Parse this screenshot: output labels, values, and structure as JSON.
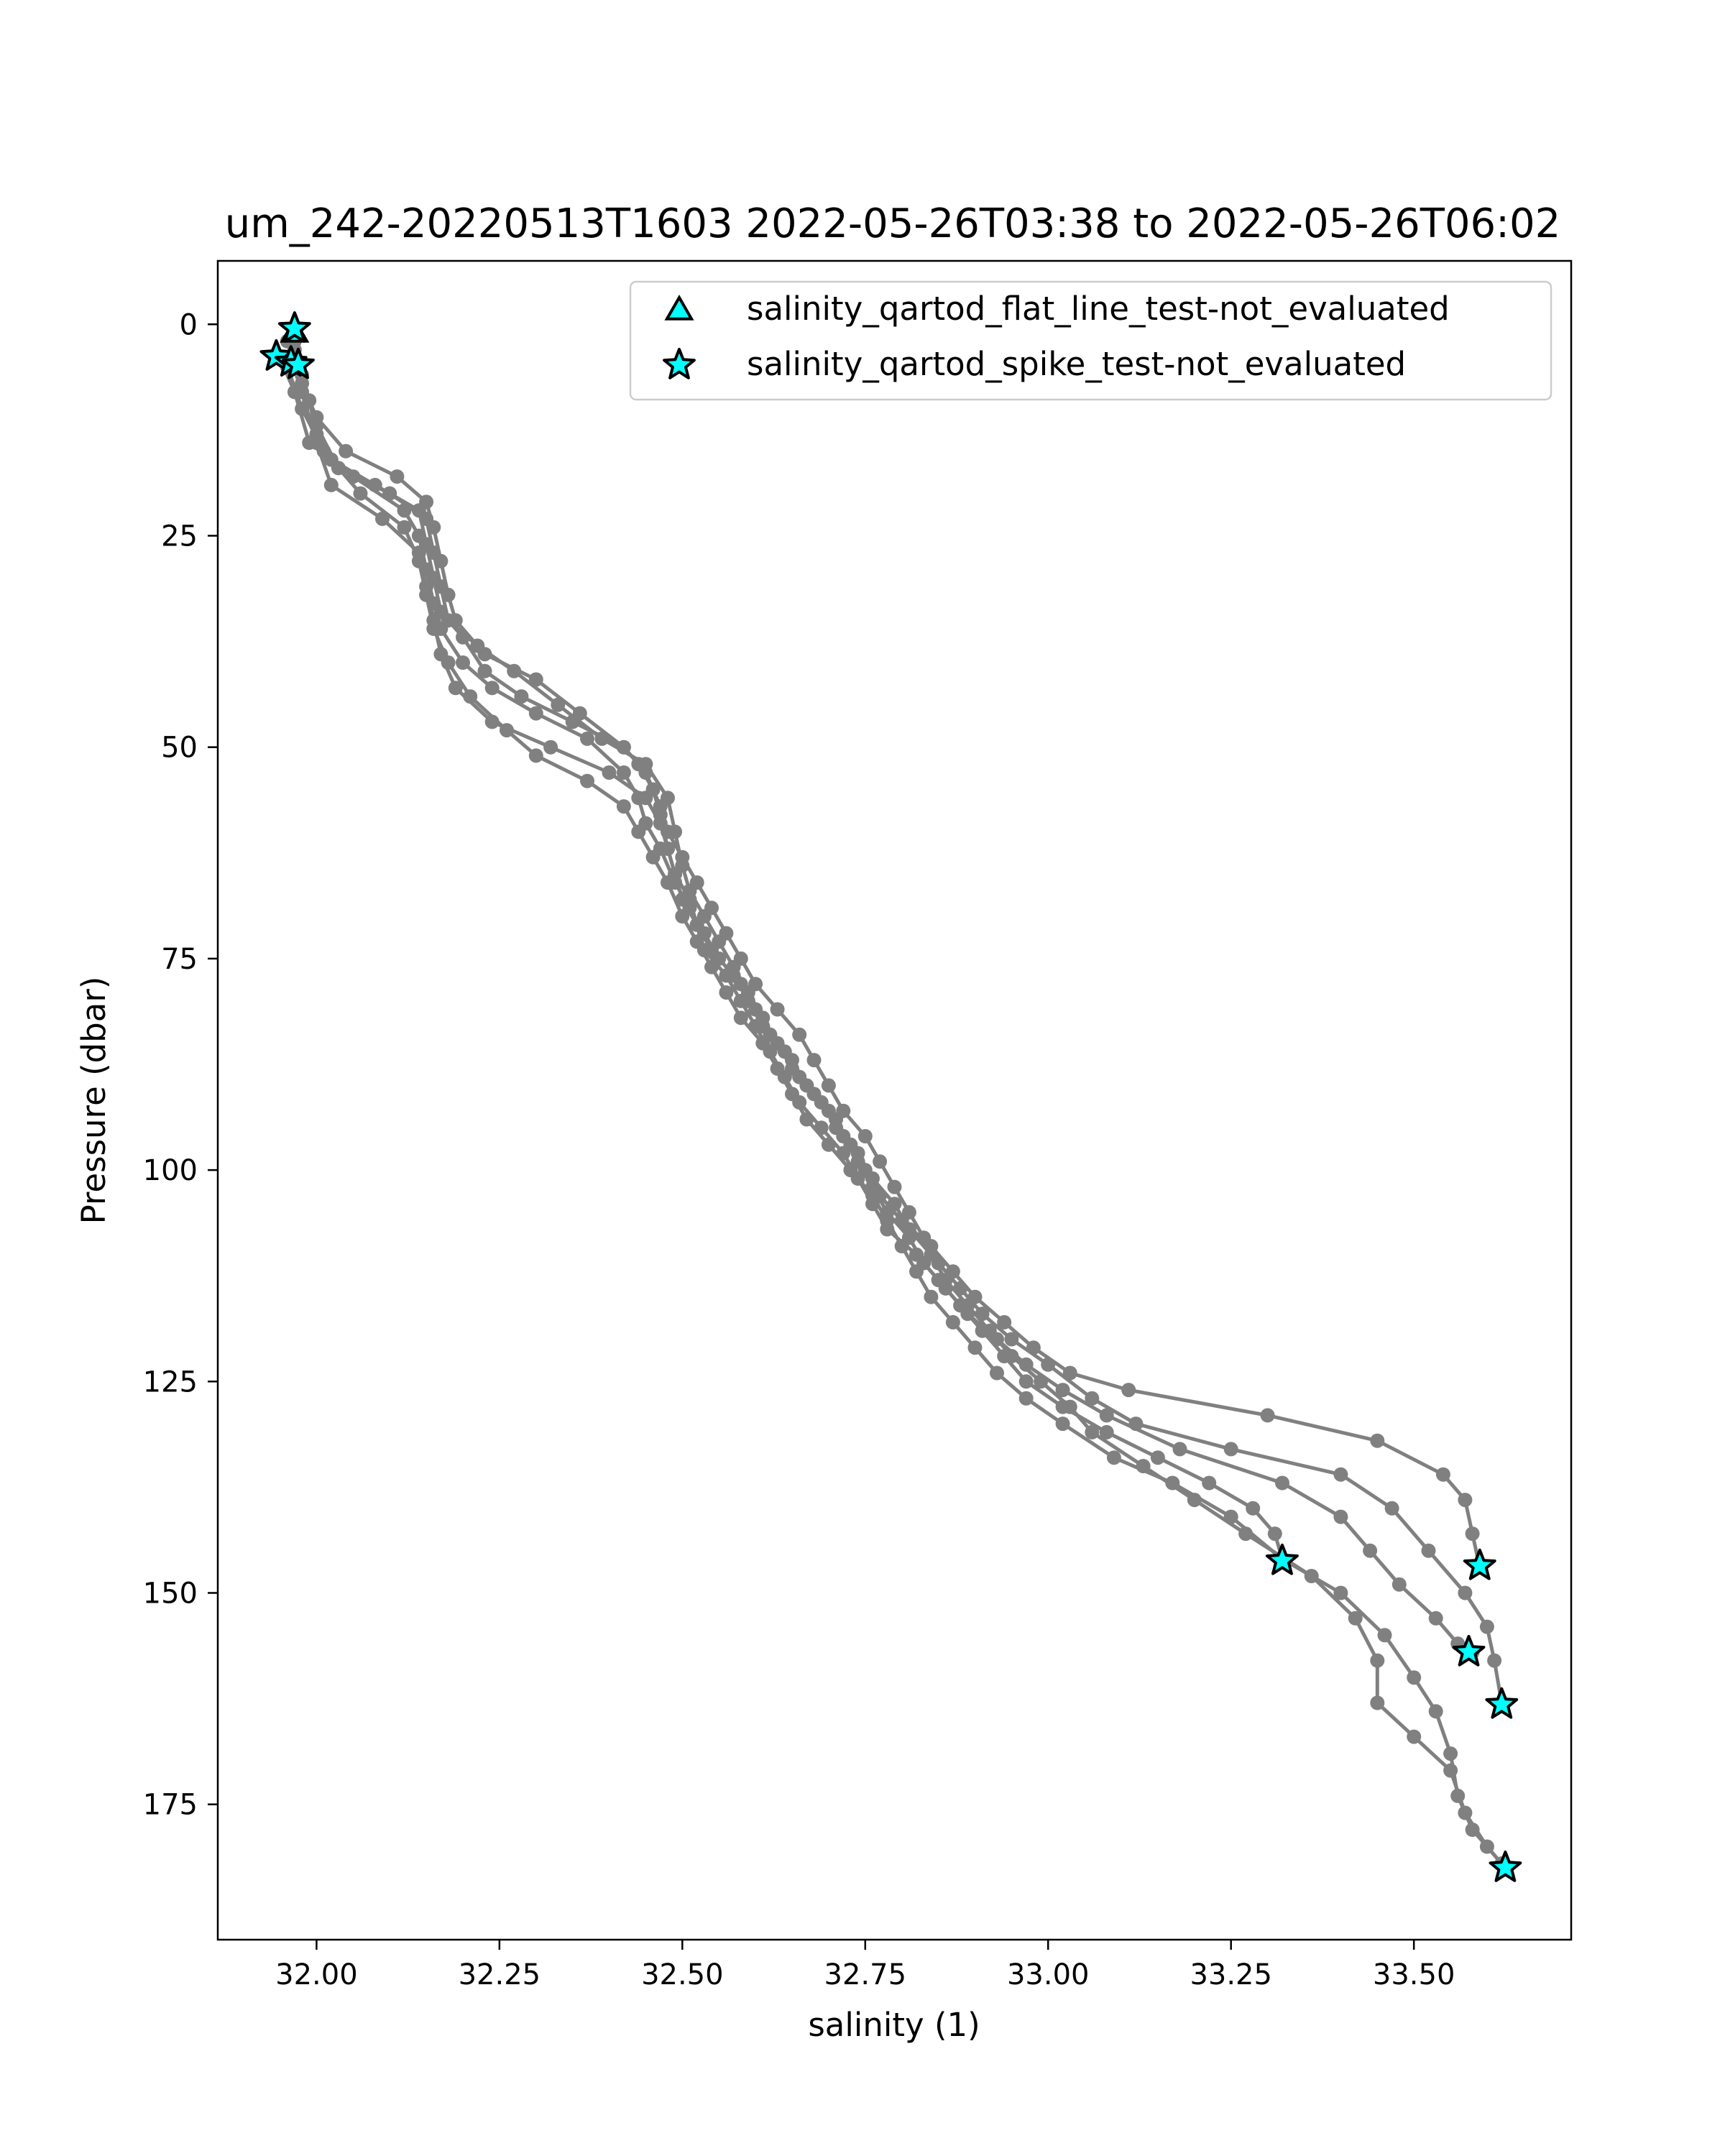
{
  "chart_data": {
    "type": "scatter",
    "title": "um_242-20220513T1603 2022-05-26T03:38 to 2022-05-26T06:02",
    "xlabel": "salinity (1)",
    "ylabel": "Pressure (dbar)",
    "xlim": [
      31.865,
      33.715
    ],
    "ylim": [
      191,
      -7.5
    ],
    "y_inverted": true,
    "grid": false,
    "legend_position": "top-right",
    "x_ticks": [
      {
        "value": 32.0,
        "label": "32.00"
      },
      {
        "value": 32.25,
        "label": "32.25"
      },
      {
        "value": 32.5,
        "label": "32.50"
      },
      {
        "value": 32.75,
        "label": "32.75"
      },
      {
        "value": 33.0,
        "label": "33.00"
      },
      {
        "value": 33.25,
        "label": "33.25"
      },
      {
        "value": 33.5,
        "label": "33.50"
      }
    ],
    "y_ticks": [
      {
        "value": 0,
        "label": "0"
      },
      {
        "value": 25,
        "label": "25"
      },
      {
        "value": 50,
        "label": "50"
      },
      {
        "value": 75,
        "label": "75"
      },
      {
        "value": 100,
        "label": "100"
      },
      {
        "value": 125,
        "label": "125"
      },
      {
        "value": 150,
        "label": "150"
      },
      {
        "value": 175,
        "label": "175"
      }
    ],
    "profile_color": "#808080",
    "marker_color": "#00ffff",
    "profiles": [
      [
        [
          31.96,
          2
        ],
        [
          31.97,
          5
        ],
        [
          31.99,
          9
        ],
        [
          32.0,
          13
        ],
        [
          32.02,
          16
        ],
        [
          32.08,
          19
        ],
        [
          32.14,
          22
        ],
        [
          32.15,
          26
        ],
        [
          32.16,
          30
        ],
        [
          32.17,
          34
        ],
        [
          32.2,
          37
        ],
        [
          32.23,
          41
        ],
        [
          32.28,
          44
        ],
        [
          32.35,
          47
        ],
        [
          32.42,
          50
        ],
        [
          32.44,
          52
        ],
        [
          32.46,
          55
        ],
        [
          32.47,
          58
        ],
        [
          32.48,
          62
        ],
        [
          32.49,
          65
        ],
        [
          32.5,
          68
        ],
        [
          32.52,
          71
        ],
        [
          32.53,
          74
        ],
        [
          32.56,
          77
        ],
        [
          32.58,
          80
        ],
        [
          32.6,
          83
        ],
        [
          32.62,
          86
        ],
        [
          32.64,
          89
        ],
        [
          32.66,
          92
        ],
        [
          32.69,
          95
        ],
        [
          32.72,
          98
        ],
        [
          32.74,
          101
        ],
        [
          32.76,
          104
        ],
        [
          32.78,
          107
        ],
        [
          32.82,
          110
        ],
        [
          32.85,
          113
        ],
        [
          32.88,
          116
        ],
        [
          32.91,
          119
        ],
        [
          32.94,
          122
        ],
        [
          32.97,
          125
        ],
        [
          33.02,
          128
        ],
        [
          33.08,
          131
        ],
        [
          33.15,
          134
        ],
        [
          33.22,
          137
        ],
        [
          33.28,
          140
        ],
        [
          33.31,
          143
        ],
        [
          33.32,
          146
        ]
      ],
      [
        [
          31.97,
          1
        ],
        [
          31.98,
          6
        ],
        [
          32.0,
          12
        ],
        [
          32.03,
          17
        ],
        [
          32.1,
          20
        ],
        [
          32.15,
          23
        ],
        [
          32.16,
          27
        ],
        [
          32.17,
          31
        ],
        [
          32.18,
          35
        ],
        [
          32.22,
          38
        ],
        [
          32.27,
          41
        ],
        [
          32.33,
          45
        ],
        [
          32.39,
          49
        ],
        [
          32.45,
          52
        ],
        [
          32.48,
          56
        ],
        [
          32.49,
          60
        ],
        [
          32.5,
          64
        ],
        [
          32.51,
          67
        ],
        [
          32.53,
          70
        ],
        [
          32.55,
          73
        ],
        [
          32.57,
          76
        ],
        [
          32.59,
          79
        ],
        [
          32.61,
          82
        ],
        [
          32.63,
          85
        ],
        [
          32.65,
          88
        ],
        [
          32.68,
          91
        ],
        [
          32.71,
          94
        ],
        [
          32.73,
          97
        ],
        [
          32.75,
          100
        ],
        [
          32.77,
          103
        ],
        [
          32.8,
          106
        ],
        [
          32.84,
          109
        ],
        [
          32.87,
          112
        ],
        [
          32.9,
          115
        ],
        [
          32.94,
          118
        ],
        [
          32.98,
          121
        ],
        [
          33.03,
          124
        ],
        [
          33.11,
          126
        ],
        [
          33.3,
          129
        ],
        [
          33.45,
          132
        ],
        [
          33.54,
          136
        ],
        [
          33.57,
          139
        ],
        [
          33.58,
          143
        ],
        [
          33.59,
          147
        ]
      ],
      [
        [
          31.95,
          4
        ],
        [
          31.97,
          8
        ],
        [
          31.99,
          14
        ],
        [
          32.05,
          18
        ],
        [
          32.12,
          22
        ],
        [
          32.14,
          25
        ],
        [
          32.15,
          29
        ],
        [
          32.16,
          33
        ],
        [
          32.17,
          36
        ],
        [
          32.2,
          40
        ],
        [
          32.24,
          43
        ],
        [
          32.3,
          46
        ],
        [
          32.37,
          49
        ],
        [
          32.42,
          53
        ],
        [
          32.44,
          56
        ],
        [
          32.45,
          59
        ],
        [
          32.47,
          62
        ],
        [
          32.49,
          66
        ],
        [
          32.51,
          69
        ],
        [
          32.53,
          72
        ],
        [
          32.55,
          75
        ],
        [
          32.58,
          78
        ],
        [
          32.6,
          81
        ],
        [
          32.62,
          84
        ],
        [
          32.65,
          87
        ],
        [
          32.67,
          90
        ],
        [
          32.7,
          93
        ],
        [
          32.72,
          96
        ],
        [
          32.74,
          99
        ],
        [
          32.76,
          102
        ],
        [
          32.78,
          105
        ],
        [
          32.81,
          108
        ],
        [
          32.83,
          111
        ],
        [
          32.86,
          114
        ],
        [
          32.89,
          117
        ],
        [
          32.93,
          120
        ],
        [
          32.97,
          123
        ],
        [
          33.02,
          126
        ],
        [
          33.08,
          129
        ],
        [
          33.18,
          133
        ],
        [
          33.32,
          137
        ],
        [
          33.4,
          141
        ],
        [
          33.44,
          145
        ],
        [
          33.48,
          149
        ],
        [
          33.53,
          153
        ],
        [
          33.56,
          156
        ],
        [
          33.58,
          157
        ]
      ],
      [
        [
          31.97,
          3
        ],
        [
          31.98,
          7
        ],
        [
          32.0,
          11
        ],
        [
          32.04,
          15
        ],
        [
          32.11,
          18
        ],
        [
          32.15,
          21
        ],
        [
          32.16,
          24
        ],
        [
          32.17,
          28
        ],
        [
          32.18,
          32
        ],
        [
          32.19,
          35
        ],
        [
          32.23,
          39
        ],
        [
          32.3,
          42
        ],
        [
          32.36,
          46
        ],
        [
          32.42,
          50
        ],
        [
          32.45,
          53
        ],
        [
          32.47,
          57
        ],
        [
          32.48,
          60
        ],
        [
          32.5,
          63
        ],
        [
          32.52,
          66
        ],
        [
          32.54,
          69
        ],
        [
          32.56,
          72
        ],
        [
          32.58,
          75
        ],
        [
          32.6,
          78
        ],
        [
          32.63,
          81
        ],
        [
          32.66,
          84
        ],
        [
          32.68,
          87
        ],
        [
          32.7,
          90
        ],
        [
          32.72,
          93
        ],
        [
          32.75,
          96
        ],
        [
          32.77,
          99
        ],
        [
          32.79,
          102
        ],
        [
          32.81,
          105
        ],
        [
          32.83,
          108
        ],
        [
          32.85,
          111
        ],
        [
          32.88,
          114
        ],
        [
          32.91,
          117
        ],
        [
          32.95,
          120
        ],
        [
          33.0,
          123
        ],
        [
          33.06,
          127
        ],
        [
          33.12,
          130
        ],
        [
          33.25,
          133
        ],
        [
          33.4,
          136
        ],
        [
          33.47,
          140
        ],
        [
          33.52,
          145
        ],
        [
          33.57,
          150
        ],
        [
          33.6,
          154
        ],
        [
          33.61,
          158
        ],
        [
          33.62,
          163
        ]
      ],
      [
        [
          31.96,
          5
        ],
        [
          31.98,
          10
        ],
        [
          32.01,
          15
        ],
        [
          32.06,
          20
        ],
        [
          32.12,
          24
        ],
        [
          32.14,
          28
        ],
        [
          32.15,
          32
        ],
        [
          32.16,
          36
        ],
        [
          32.18,
          40
        ],
        [
          32.21,
          44
        ],
        [
          32.26,
          48
        ],
        [
          32.3,
          51
        ],
        [
          32.37,
          54
        ],
        [
          32.42,
          57
        ],
        [
          32.44,
          60
        ],
        [
          32.46,
          63
        ],
        [
          32.48,
          66
        ],
        [
          32.5,
          70
        ],
        [
          32.52,
          73
        ],
        [
          32.54,
          76
        ],
        [
          32.56,
          79
        ],
        [
          32.58,
          82
        ],
        [
          32.61,
          85
        ],
        [
          32.63,
          88
        ],
        [
          32.65,
          91
        ],
        [
          32.67,
          94
        ],
        [
          32.7,
          97
        ],
        [
          32.73,
          100
        ],
        [
          32.76,
          103
        ],
        [
          32.78,
          106
        ],
        [
          32.8,
          109
        ],
        [
          32.82,
          112
        ],
        [
          32.84,
          115
        ],
        [
          32.87,
          118
        ],
        [
          32.9,
          121
        ],
        [
          32.93,
          124
        ],
        [
          32.97,
          127
        ],
        [
          33.02,
          130
        ],
        [
          33.09,
          134
        ],
        [
          33.17,
          137
        ],
        [
          33.25,
          141
        ],
        [
          33.32,
          146
        ],
        [
          33.4,
          150
        ],
        [
          33.46,
          155
        ],
        [
          33.5,
          160
        ],
        [
          33.53,
          164
        ],
        [
          33.55,
          169
        ],
        [
          33.56,
          174
        ],
        [
          33.58,
          178
        ],
        [
          33.62,
          182
        ]
      ],
      [
        [
          31.97,
          2
        ],
        [
          31.98,
          8
        ],
        [
          32.0,
          14
        ],
        [
          32.02,
          19
        ],
        [
          32.09,
          23
        ],
        [
          32.14,
          27
        ],
        [
          32.15,
          31
        ],
        [
          32.16,
          35
        ],
        [
          32.17,
          39
        ],
        [
          32.19,
          43
        ],
        [
          32.24,
          47
        ],
        [
          32.32,
          50
        ],
        [
          32.4,
          53
        ],
        [
          32.45,
          56
        ],
        [
          32.47,
          59
        ],
        [
          32.48,
          62
        ],
        [
          32.49,
          65
        ],
        [
          32.51,
          68
        ],
        [
          32.52,
          71
        ],
        [
          32.54,
          74
        ],
        [
          32.57,
          77
        ],
        [
          32.59,
          80
        ],
        [
          32.61,
          83
        ],
        [
          32.64,
          86
        ],
        [
          32.66,
          89
        ],
        [
          32.69,
          92
        ],
        [
          32.71,
          95
        ],
        [
          32.74,
          98
        ],
        [
          32.76,
          101
        ],
        [
          32.79,
          104
        ],
        [
          32.81,
          107
        ],
        [
          32.84,
          110
        ],
        [
          32.86,
          113
        ],
        [
          32.89,
          116
        ],
        [
          32.92,
          119
        ],
        [
          32.95,
          122
        ],
        [
          32.99,
          125
        ],
        [
          33.03,
          128
        ],
        [
          33.06,
          131
        ],
        [
          33.13,
          135
        ],
        [
          33.2,
          139
        ],
        [
          33.27,
          143
        ],
        [
          33.36,
          148
        ],
        [
          33.42,
          153
        ],
        [
          33.45,
          158
        ],
        [
          33.45,
          163
        ],
        [
          33.5,
          167
        ],
        [
          33.55,
          171
        ],
        [
          33.57,
          176
        ],
        [
          33.6,
          180
        ],
        [
          33.62,
          182
        ]
      ]
    ],
    "series": [
      {
        "name": "salinity_qartod_flat_line_test-not_evaluated",
        "marker": "triangle",
        "points": [
          [
            31.97,
            1.0
          ]
        ]
      },
      {
        "name": "salinity_qartod_spike_test-not_evaluated",
        "marker": "star",
        "points": [
          [
            31.97,
            0.5
          ],
          [
            31.945,
            3.8
          ],
          [
            31.965,
            4.5
          ],
          [
            31.975,
            4.8
          ],
          [
            33.32,
            146.2
          ],
          [
            33.59,
            146.8
          ],
          [
            33.575,
            157.0
          ],
          [
            33.62,
            163.2
          ],
          [
            33.625,
            182.5
          ]
        ]
      }
    ]
  }
}
